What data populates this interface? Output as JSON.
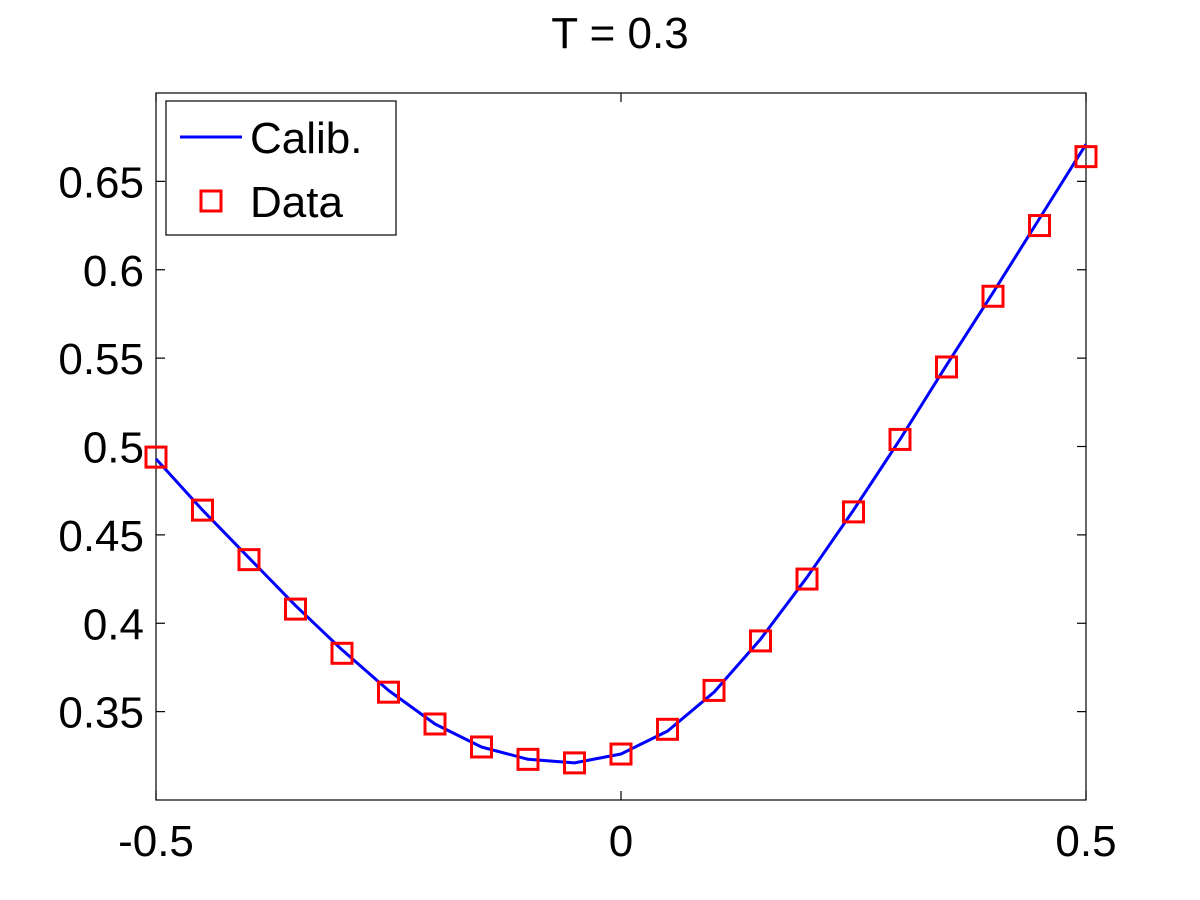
{
  "chart_data": {
    "type": "line",
    "title": "T = 0.3",
    "xlabel": "",
    "ylabel": "",
    "xlim": [
      -0.5,
      0.5
    ],
    "ylim": [
      0.3,
      0.7
    ],
    "x_ticks": [
      -0.5,
      0,
      0.5
    ],
    "x_tick_labels": [
      "-0.5",
      "0",
      "0.5"
    ],
    "y_ticks": [
      0.35,
      0.4,
      0.45,
      0.5,
      0.55,
      0.6,
      0.65
    ],
    "y_tick_labels": [
      "0.35",
      "0.4",
      "0.45",
      "0.5",
      "0.55",
      "0.6",
      "0.65"
    ],
    "grid": false,
    "legend_position": "top-left",
    "series": [
      {
        "name": "Calib.",
        "style": "line",
        "color": "#0000ff",
        "x": [
          -0.5,
          -0.45,
          -0.4,
          -0.35,
          -0.3,
          -0.25,
          -0.2,
          -0.15,
          -0.1,
          -0.05,
          0,
          0.05,
          0.1,
          0.15,
          0.2,
          0.25,
          0.3,
          0.35,
          0.4,
          0.45,
          0.5
        ],
        "values": [
          0.493,
          0.464,
          0.437,
          0.41,
          0.385,
          0.362,
          0.343,
          0.33,
          0.323,
          0.321,
          0.326,
          0.339,
          0.361,
          0.391,
          0.426,
          0.464,
          0.504,
          0.546,
          0.587,
          0.629,
          0.671
        ]
      },
      {
        "name": "Data",
        "style": "marker-square",
        "color": "#ff0000",
        "x": [
          -0.5,
          -0.45,
          -0.4,
          -0.35,
          -0.3,
          -0.25,
          -0.2,
          -0.15,
          -0.1,
          -0.05,
          0,
          0.05,
          0.1,
          0.15,
          0.2,
          0.25,
          0.3,
          0.35,
          0.4,
          0.45,
          0.5
        ],
        "values": [
          0.494,
          0.464,
          0.436,
          0.408,
          0.383,
          0.361,
          0.343,
          0.33,
          0.323,
          0.321,
          0.326,
          0.34,
          0.362,
          0.39,
          0.425,
          0.463,
          0.504,
          0.545,
          0.585,
          0.625,
          0.664
        ]
      }
    ]
  }
}
